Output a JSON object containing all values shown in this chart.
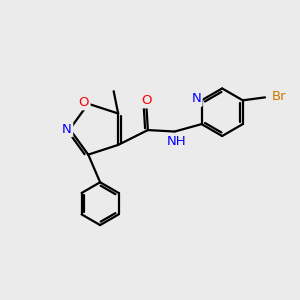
{
  "bg_color": "#ebebeb",
  "bond_color": "#000000",
  "bond_width": 1.6,
  "atom_colors": {
    "O": "#ff0000",
    "N": "#0000ff",
    "Br": "#cc7700",
    "C": "#000000"
  },
  "font_size": 9.5
}
